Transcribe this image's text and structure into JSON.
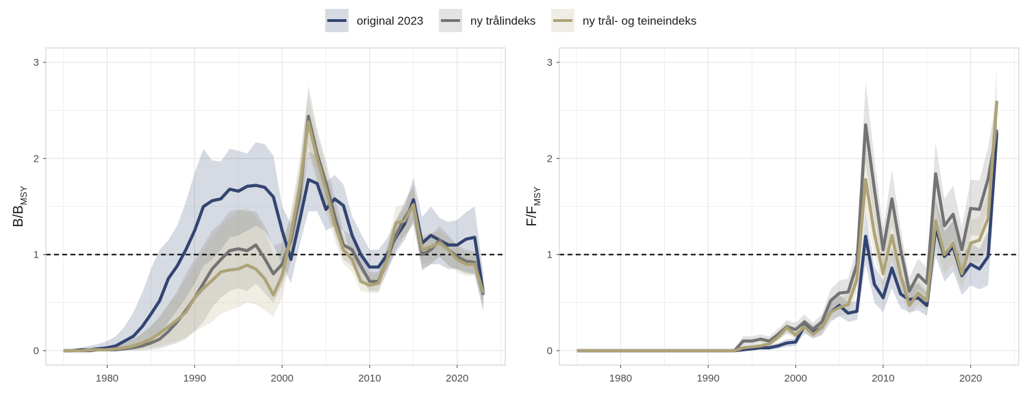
{
  "colors": {
    "original": "#324470",
    "tral": "#737373",
    "teine": "#ada378",
    "grid": "#e5e5e5",
    "border": "#c8c8c8",
    "reference": "#000000"
  },
  "legend": {
    "position": "top-center",
    "items": [
      {
        "key": "original",
        "label": "original 2023"
      },
      {
        "key": "tral",
        "label": "ny trålindeks"
      },
      {
        "key": "teine",
        "label": "ny trål- og teineindeks"
      }
    ]
  },
  "chart_data": [
    {
      "type": "line",
      "ylabel_main": "B/B",
      "ylabel_sub": "MSY",
      "xlim": [
        1973,
        2025.5
      ],
      "ylim": [
        -0.15,
        3.15
      ],
      "xticks": [
        1980,
        1990,
        2000,
        2010,
        2020
      ],
      "yticks": [
        0,
        1,
        2,
        3
      ],
      "reference_line": 1,
      "x": [
        1975,
        1976,
        1977,
        1978,
        1979,
        1980,
        1981,
        1982,
        1983,
        1984,
        1985,
        1986,
        1987,
        1988,
        1989,
        1990,
        1991,
        1992,
        1993,
        1994,
        1995,
        1996,
        1997,
        1998,
        1999,
        2000,
        2001,
        2002,
        2003,
        2004,
        2005,
        2006,
        2007,
        2008,
        2009,
        2010,
        2011,
        2012,
        2013,
        2014,
        2015,
        2016,
        2017,
        2018,
        2019,
        2020,
        2021,
        2022,
        2023
      ],
      "series": [
        {
          "name": "original 2023",
          "key": "original",
          "values": [
            0.0,
            0.0,
            0.01,
            0.01,
            0.02,
            0.03,
            0.05,
            0.1,
            0.15,
            0.25,
            0.38,
            0.52,
            0.75,
            0.88,
            1.05,
            1.25,
            1.5,
            1.56,
            1.58,
            1.68,
            1.66,
            1.71,
            1.72,
            1.7,
            1.6,
            1.25,
            0.95,
            1.35,
            1.78,
            1.74,
            1.47,
            1.58,
            1.51,
            1.2,
            1.0,
            0.87,
            0.87,
            1.0,
            1.18,
            1.32,
            1.57,
            1.12,
            1.2,
            1.15,
            1.1,
            1.1,
            1.16,
            1.18,
            0.6
          ],
          "lower": [
            0.0,
            0.0,
            0.0,
            0.0,
            0.0,
            0.0,
            0.0,
            0.01,
            0.02,
            0.05,
            0.1,
            0.18,
            0.3,
            0.42,
            0.55,
            0.7,
            0.88,
            0.95,
            1.05,
            1.18,
            1.2,
            1.25,
            1.3,
            1.25,
            1.1,
            0.9,
            0.7,
            1.1,
            1.45,
            1.45,
            1.25,
            1.3,
            1.25,
            0.98,
            0.82,
            0.72,
            0.72,
            0.85,
            1.02,
            1.15,
            1.35,
            0.85,
            0.9,
            0.9,
            0.85,
            0.85,
            0.82,
            0.8,
            0.4
          ],
          "upper": [
            0.01,
            0.02,
            0.03,
            0.05,
            0.07,
            0.1,
            0.15,
            0.25,
            0.4,
            0.6,
            0.85,
            1.05,
            1.15,
            1.3,
            1.55,
            1.85,
            2.1,
            1.98,
            1.97,
            2.1,
            2.08,
            2.05,
            2.17,
            2.15,
            2.03,
            1.5,
            1.32,
            1.62,
            2.07,
            2.03,
            1.75,
            1.83,
            1.73,
            1.4,
            1.22,
            1.05,
            1.05,
            1.17,
            1.36,
            1.5,
            1.8,
            1.39,
            1.5,
            1.38,
            1.34,
            1.36,
            1.44,
            1.5,
            0.8
          ]
        },
        {
          "name": "ny trålindeks",
          "key": "tral",
          "values": [
            0.0,
            0.0,
            0.0,
            0.0,
            0.01,
            0.01,
            0.01,
            0.02,
            0.03,
            0.05,
            0.08,
            0.12,
            0.2,
            0.3,
            0.42,
            0.55,
            0.7,
            0.85,
            0.95,
            1.04,
            1.06,
            1.04,
            1.1,
            0.96,
            0.8,
            0.9,
            1.15,
            1.6,
            2.44,
            2.05,
            1.75,
            1.4,
            1.1,
            1.05,
            0.88,
            0.72,
            0.72,
            0.95,
            1.2,
            1.38,
            1.52,
            1.0,
            1.05,
            1.15,
            1.05,
            0.98,
            0.93,
            0.92,
            0.58
          ],
          "lower": [
            0.0,
            0.0,
            0.0,
            0.0,
            0.0,
            0.0,
            0.0,
            0.0,
            0.0,
            0.0,
            0.01,
            0.02,
            0.05,
            0.08,
            0.12,
            0.2,
            0.3,
            0.45,
            0.55,
            0.62,
            0.65,
            0.62,
            0.7,
            0.6,
            0.5,
            0.68,
            0.92,
            1.3,
            2.12,
            1.8,
            1.52,
            1.22,
            0.95,
            0.88,
            0.75,
            0.62,
            0.62,
            0.82,
            1.05,
            1.2,
            1.32,
            0.83,
            0.9,
            0.98,
            0.88,
            0.85,
            0.8,
            0.8,
            0.45
          ],
          "upper": [
            0.01,
            0.01,
            0.01,
            0.02,
            0.03,
            0.04,
            0.05,
            0.08,
            0.12,
            0.18,
            0.25,
            0.35,
            0.48,
            0.62,
            0.8,
            0.95,
            1.1,
            1.25,
            1.33,
            1.45,
            1.47,
            1.45,
            1.45,
            1.3,
            1.1,
            1.12,
            1.4,
            1.9,
            2.76,
            2.3,
            1.98,
            1.6,
            1.25,
            1.2,
            1.0,
            0.82,
            0.82,
            1.08,
            1.35,
            1.56,
            1.72,
            1.17,
            1.2,
            1.3,
            1.2,
            1.1,
            1.05,
            1.03,
            0.7
          ]
        },
        {
          "name": "ny trål- og teineindeks",
          "key": "teine",
          "values": [
            0.0,
            0.0,
            0.0,
            0.01,
            0.01,
            0.01,
            0.02,
            0.03,
            0.05,
            0.08,
            0.12,
            0.18,
            0.25,
            0.32,
            0.4,
            0.55,
            0.65,
            0.73,
            0.82,
            0.84,
            0.85,
            0.89,
            0.85,
            0.75,
            0.58,
            0.78,
            1.2,
            1.7,
            2.38,
            2.0,
            1.68,
            1.32,
            1.05,
            0.95,
            0.72,
            0.68,
            0.7,
            0.95,
            1.33,
            1.35,
            1.52,
            1.05,
            1.08,
            1.12,
            1.05,
            0.95,
            0.9,
            0.9,
            0.6
          ],
          "lower": [
            0.0,
            0.0,
            0.0,
            0.0,
            0.0,
            0.0,
            0.0,
            0.01,
            0.01,
            0.02,
            0.03,
            0.05,
            0.07,
            0.1,
            0.14,
            0.2,
            0.25,
            0.3,
            0.38,
            0.42,
            0.45,
            0.5,
            0.48,
            0.42,
            0.35,
            0.55,
            0.95,
            1.4,
            2.05,
            1.75,
            1.45,
            1.15,
            0.9,
            0.82,
            0.62,
            0.6,
            0.6,
            0.82,
            1.15,
            1.18,
            1.32,
            0.9,
            0.92,
            0.98,
            0.9,
            0.82,
            0.78,
            0.78,
            0.5
          ],
          "upper": [
            0.01,
            0.01,
            0.01,
            0.02,
            0.03,
            0.04,
            0.05,
            0.08,
            0.12,
            0.18,
            0.26,
            0.36,
            0.48,
            0.6,
            0.75,
            0.9,
            1.05,
            1.18,
            1.3,
            1.38,
            1.45,
            1.48,
            1.4,
            1.25,
            1.0,
            1.05,
            1.45,
            2.0,
            2.65,
            2.25,
            1.92,
            1.5,
            1.2,
            1.08,
            0.82,
            0.78,
            0.8,
            1.08,
            1.5,
            1.52,
            1.72,
            1.2,
            1.22,
            1.25,
            1.18,
            1.08,
            1.02,
            1.02,
            0.7
          ]
        }
      ]
    },
    {
      "type": "line",
      "ylabel_main": "F/F",
      "ylabel_sub": "MSY",
      "xlim": [
        1973,
        2025.5
      ],
      "ylim": [
        -0.15,
        3.15
      ],
      "xticks": [
        1980,
        1990,
        2000,
        2010,
        2020
      ],
      "yticks": [
        0,
        1,
        2,
        3
      ],
      "reference_line": 1,
      "x": [
        1975,
        1976,
        1977,
        1978,
        1979,
        1980,
        1981,
        1982,
        1983,
        1984,
        1985,
        1986,
        1987,
        1988,
        1989,
        1990,
        1991,
        1992,
        1993,
        1994,
        1995,
        1996,
        1997,
        1998,
        1999,
        2000,
        2001,
        2002,
        2003,
        2004,
        2005,
        2006,
        2007,
        2008,
        2009,
        2010,
        2011,
        2012,
        2013,
        2014,
        2015,
        2016,
        2017,
        2018,
        2019,
        2020,
        2021,
        2022,
        2023
      ],
      "series": [
        {
          "name": "original 2023",
          "key": "original",
          "values": [
            0,
            0,
            0,
            0,
            0,
            0,
            0,
            0,
            0,
            0,
            0,
            0,
            0,
            0,
            0,
            0,
            0,
            0,
            0,
            0.01,
            0.02,
            0.03,
            0.03,
            0.05,
            0.08,
            0.09,
            0.26,
            0.19,
            0.24,
            0.4,
            0.47,
            0.39,
            0.41,
            1.19,
            0.69,
            0.55,
            0.86,
            0.59,
            0.53,
            0.55,
            0.47,
            1.28,
            0.98,
            1.08,
            0.78,
            0.9,
            0.85,
            0.98,
            2.27
          ],
          "lower": [
            0,
            0,
            0,
            0,
            0,
            0,
            0,
            0,
            0,
            0,
            0,
            0,
            0,
            0,
            0,
            0,
            0,
            0,
            0,
            0.0,
            0.0,
            0.01,
            0.01,
            0.02,
            0.04,
            0.05,
            0.18,
            0.13,
            0.16,
            0.3,
            0.36,
            0.3,
            0.32,
            0.9,
            0.5,
            0.4,
            0.65,
            0.44,
            0.4,
            0.42,
            0.36,
            0.98,
            0.72,
            0.82,
            0.58,
            0.68,
            0.64,
            0.68,
            1.98
          ],
          "upper": [
            0,
            0,
            0,
            0,
            0,
            0,
            0,
            0,
            0,
            0,
            0,
            0,
            0,
            0,
            0,
            0,
            0,
            0,
            0,
            0.03,
            0.05,
            0.06,
            0.06,
            0.08,
            0.12,
            0.13,
            0.33,
            0.26,
            0.32,
            0.5,
            0.58,
            0.5,
            0.52,
            1.45,
            0.88,
            0.72,
            1.08,
            0.76,
            0.68,
            0.7,
            0.6,
            1.55,
            1.25,
            1.35,
            0.98,
            1.12,
            1.06,
            1.25,
            2.52
          ]
        },
        {
          "name": "ny trålindeks",
          "key": "tral",
          "values": [
            0,
            0,
            0,
            0,
            0,
            0,
            0,
            0,
            0,
            0,
            0,
            0,
            0,
            0,
            0,
            0,
            0,
            0,
            0,
            0.1,
            0.1,
            0.12,
            0.1,
            0.17,
            0.25,
            0.22,
            0.3,
            0.22,
            0.3,
            0.52,
            0.6,
            0.61,
            0.9,
            2.35,
            1.68,
            1.05,
            1.58,
            1.05,
            0.62,
            0.79,
            0.7,
            1.84,
            1.3,
            1.42,
            1.05,
            1.48,
            1.47,
            1.79,
            2.3
          ],
          "lower": [
            0,
            0,
            0,
            0,
            0,
            0,
            0,
            0,
            0,
            0,
            0,
            0,
            0,
            0,
            0,
            0,
            0,
            0,
            0,
            0.05,
            0.06,
            0.08,
            0.06,
            0.12,
            0.18,
            0.16,
            0.23,
            0.16,
            0.22,
            0.4,
            0.48,
            0.48,
            0.72,
            1.95,
            1.38,
            0.85,
            1.3,
            0.85,
            0.5,
            0.64,
            0.57,
            1.52,
            1.05,
            1.16,
            0.85,
            1.2,
            1.2,
            1.48,
            2.0
          ],
          "upper": [
            0,
            0,
            0,
            0,
            0,
            0,
            0,
            0,
            0,
            0,
            0,
            0,
            0,
            0,
            0,
            0,
            0,
            0,
            0,
            0.15,
            0.15,
            0.17,
            0.15,
            0.23,
            0.32,
            0.29,
            0.38,
            0.29,
            0.38,
            0.64,
            0.73,
            0.75,
            1.08,
            2.8,
            2.0,
            1.27,
            1.88,
            1.27,
            0.76,
            0.96,
            0.86,
            2.16,
            1.58,
            1.72,
            1.28,
            1.78,
            1.77,
            2.12,
            2.65
          ]
        },
        {
          "name": "ny trål- og teineindeks",
          "key": "teine",
          "values": [
            0,
            0,
            0,
            0,
            0,
            0,
            0,
            0,
            0,
            0,
            0,
            0,
            0,
            0,
            0,
            0,
            0,
            0,
            0,
            0.03,
            0.04,
            0.05,
            0.07,
            0.14,
            0.24,
            0.16,
            0.25,
            0.17,
            0.24,
            0.4,
            0.45,
            0.48,
            0.74,
            1.78,
            1.22,
            0.8,
            1.2,
            0.78,
            0.47,
            0.6,
            0.52,
            1.35,
            1.0,
            1.12,
            0.8,
            1.12,
            1.15,
            1.38,
            2.6
          ],
          "lower": [
            0,
            0,
            0,
            0,
            0,
            0,
            0,
            0,
            0,
            0,
            0,
            0,
            0,
            0,
            0,
            0,
            0,
            0,
            0,
            0.01,
            0.02,
            0.03,
            0.04,
            0.1,
            0.18,
            0.12,
            0.19,
            0.12,
            0.18,
            0.32,
            0.36,
            0.38,
            0.6,
            1.45,
            0.98,
            0.64,
            0.96,
            0.62,
            0.37,
            0.48,
            0.42,
            1.1,
            0.8,
            0.9,
            0.64,
            0.9,
            0.92,
            1.12,
            2.3
          ],
          "upper": [
            0,
            0,
            0,
            0,
            0,
            0,
            0,
            0,
            0,
            0,
            0,
            0,
            0,
            0,
            0,
            0,
            0,
            0,
            0,
            0.05,
            0.06,
            0.08,
            0.1,
            0.19,
            0.3,
            0.21,
            0.32,
            0.23,
            0.31,
            0.49,
            0.55,
            0.59,
            0.9,
            2.15,
            1.48,
            0.98,
            1.45,
            0.95,
            0.58,
            0.73,
            0.63,
            1.62,
            1.22,
            1.36,
            0.98,
            1.36,
            1.39,
            1.66,
            2.95
          ]
        }
      ]
    }
  ]
}
